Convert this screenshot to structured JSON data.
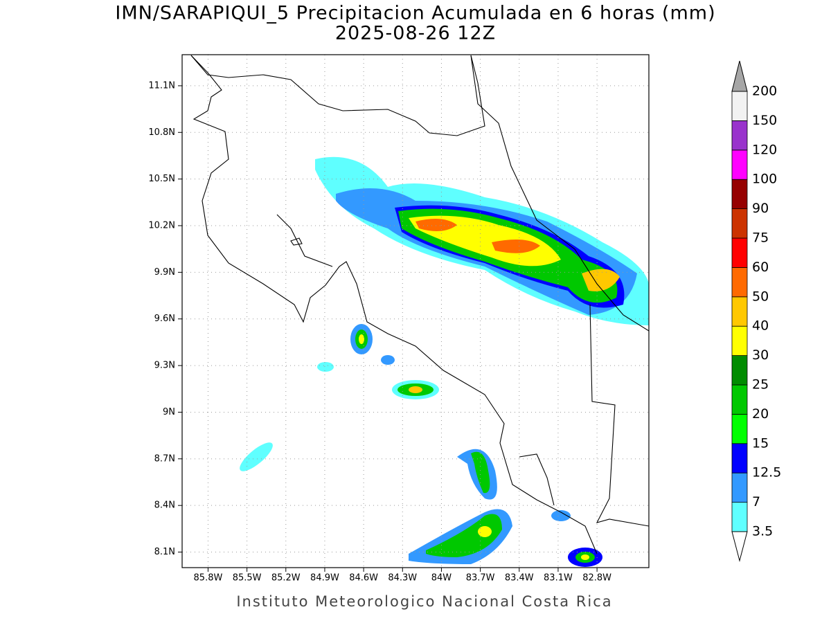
{
  "chart_data": {
    "type": "map",
    "title": "IMN/SARAPIQUI_5 Precipitacion Acumulada en 6 horas (mm)",
    "subtitle": "2025-08-26 12Z",
    "footer": "Instituto Meteorologico Nacional Costa Rica",
    "xlim": [
      -86.0,
      -82.4
    ],
    "ylim": [
      8.0,
      11.3
    ],
    "xticks": [
      {
        "value": -85.8,
        "label": "85.8W"
      },
      {
        "value": -85.5,
        "label": "85.5W"
      },
      {
        "value": -85.2,
        "label": "85.2W"
      },
      {
        "value": -84.9,
        "label": "84.9W"
      },
      {
        "value": -84.6,
        "label": "84.6W"
      },
      {
        "value": -84.3,
        "label": "84.3W"
      },
      {
        "value": -84.0,
        "label": "84W"
      },
      {
        "value": -83.7,
        "label": "83.7W"
      },
      {
        "value": -83.4,
        "label": "83.4W"
      },
      {
        "value": -83.1,
        "label": "83.1W"
      },
      {
        "value": -82.8,
        "label": "82.8W"
      }
    ],
    "yticks": [
      {
        "value": 8.1,
        "label": "8.1N"
      },
      {
        "value": 8.4,
        "label": "8.4N"
      },
      {
        "value": 8.7,
        "label": "8.7N"
      },
      {
        "value": 9.0,
        "label": "9N"
      },
      {
        "value": 9.3,
        "label": "9.3N"
      },
      {
        "value": 9.6,
        "label": "9.6N"
      },
      {
        "value": 9.9,
        "label": "9.9N"
      },
      {
        "value": 10.2,
        "label": "10.2N"
      },
      {
        "value": 10.5,
        "label": "10.5N"
      },
      {
        "value": 10.8,
        "label": "10.8N"
      },
      {
        "value": 11.1,
        "label": "11.1N"
      }
    ],
    "grid": true,
    "colorbar": {
      "levels": [
        3.5,
        7,
        12.5,
        15,
        20,
        25,
        30,
        40,
        50,
        60,
        75,
        90,
        100,
        120,
        150,
        200
      ],
      "colors": [
        "#5fffff",
        "#3399ff",
        "#0000ff",
        "#00ff00",
        "#00c800",
        "#008c00",
        "#ffff00",
        "#ffc800",
        "#ff6a00",
        "#ff0000",
        "#cc3300",
        "#960000",
        "#ff00ff",
        "#9933cc",
        "#f2f2f2"
      ],
      "over_color": "#a6a6a6",
      "under_color": "#ffffff"
    }
  }
}
